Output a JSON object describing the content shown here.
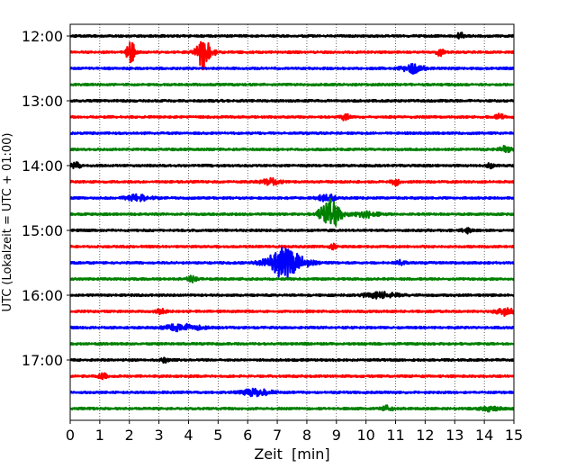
{
  "chart_data": {
    "type": "line",
    "title": "",
    "xlabel": "Zeit  [min]",
    "ylabel": "UTC (Lokalzeit = UTC + 01:00)",
    "xlim": [
      0,
      15
    ],
    "x_ticks": [
      "0",
      "1",
      "2",
      "3",
      "4",
      "5",
      "6",
      "7",
      "8",
      "9",
      "10",
      "11",
      "12",
      "13",
      "14",
      "15"
    ],
    "y_ticks": [
      {
        "label": "12:00",
        "hour": 12.0
      },
      {
        "label": "13:00",
        "hour": 13.0
      },
      {
        "label": "14:00",
        "hour": 14.0
      },
      {
        "label": "15:00",
        "hour": 15.0
      },
      {
        "label": "16:00",
        "hour": 16.0
      },
      {
        "label": "17:00",
        "hour": 17.0
      }
    ],
    "trace_interval_minutes": 15,
    "first_trace_hour": 12.0,
    "trace_colors": [
      "#000000",
      "#ff0000",
      "#0000ff",
      "#008000"
    ],
    "traces": [
      {
        "start": "12:00",
        "color": "#000000",
        "amplitude": 0.12,
        "events": [
          {
            "x": 13.2,
            "amp": 0.35,
            "width": 0.15
          }
        ]
      },
      {
        "start": "12:15",
        "color": "#ff0000",
        "amplitude": 0.12,
        "events": [
          {
            "x": 2.05,
            "amp": 1.3,
            "width": 0.15
          },
          {
            "x": 4.55,
            "amp": 2.2,
            "width": 0.25
          },
          {
            "x": 12.5,
            "amp": 0.4,
            "width": 0.12
          }
        ]
      },
      {
        "start": "12:30",
        "color": "#0000ff",
        "amplitude": 0.12,
        "events": [
          {
            "x": 11.6,
            "amp": 0.55,
            "width": 0.35
          }
        ]
      },
      {
        "start": "12:45",
        "color": "#008000",
        "amplitude": 0.12,
        "events": []
      },
      {
        "start": "13:00",
        "color": "#000000",
        "amplitude": 0.12,
        "events": []
      },
      {
        "start": "13:15",
        "color": "#ff0000",
        "amplitude": 0.12,
        "events": [
          {
            "x": 9.3,
            "amp": 0.4,
            "width": 0.12
          },
          {
            "x": 14.5,
            "amp": 0.35,
            "width": 0.15
          }
        ]
      },
      {
        "start": "13:30",
        "color": "#0000ff",
        "amplitude": 0.12,
        "events": []
      },
      {
        "start": "13:45",
        "color": "#008000",
        "amplitude": 0.12,
        "events": [
          {
            "x": 14.7,
            "amp": 0.35,
            "width": 0.2
          }
        ]
      },
      {
        "start": "14:00",
        "color": "#000000",
        "amplitude": 0.12,
        "events": [
          {
            "x": 0.2,
            "amp": 0.35,
            "width": 0.15
          },
          {
            "x": 14.2,
            "amp": 0.3,
            "width": 0.1
          }
        ]
      },
      {
        "start": "14:15",
        "color": "#ff0000",
        "amplitude": 0.12,
        "events": [
          {
            "x": 6.8,
            "amp": 0.4,
            "width": 0.3
          },
          {
            "x": 11.0,
            "amp": 0.35,
            "width": 0.15
          }
        ]
      },
      {
        "start": "14:30",
        "color": "#0000ff",
        "amplitude": 0.12,
        "events": [
          {
            "x": 2.3,
            "amp": 0.35,
            "width": 0.4
          },
          {
            "x": 8.7,
            "amp": 0.5,
            "width": 0.3
          }
        ]
      },
      {
        "start": "14:45",
        "color": "#008000",
        "amplitude": 0.12,
        "events": [
          {
            "x": 8.8,
            "amp": 1.8,
            "width": 0.35
          },
          {
            "x": 10.0,
            "amp": 0.35,
            "width": 0.4
          }
        ]
      },
      {
        "start": "15:00",
        "color": "#000000",
        "amplitude": 0.12,
        "events": [
          {
            "x": 13.4,
            "amp": 0.3,
            "width": 0.15
          }
        ]
      },
      {
        "start": "15:15",
        "color": "#ff0000",
        "amplitude": 0.12,
        "events": [
          {
            "x": 8.9,
            "amp": 0.3,
            "width": 0.12
          }
        ]
      },
      {
        "start": "15:30",
        "color": "#0000ff",
        "amplitude": 0.12,
        "events": [
          {
            "x": 7.3,
            "amp": 1.9,
            "width": 0.6
          },
          {
            "x": 11.2,
            "amp": 0.3,
            "width": 0.15
          }
        ]
      },
      {
        "start": "15:45",
        "color": "#008000",
        "amplitude": 0.12,
        "events": [
          {
            "x": 4.1,
            "amp": 0.35,
            "width": 0.15
          }
        ]
      },
      {
        "start": "16:00",
        "color": "#000000",
        "amplitude": 0.12,
        "events": [
          {
            "x": 10.5,
            "amp": 0.35,
            "width": 0.6
          }
        ]
      },
      {
        "start": "16:15",
        "color": "#ff0000",
        "amplitude": 0.12,
        "events": [
          {
            "x": 3.1,
            "amp": 0.3,
            "width": 0.2
          },
          {
            "x": 14.7,
            "amp": 0.45,
            "width": 0.3
          }
        ]
      },
      {
        "start": "16:30",
        "color": "#0000ff",
        "amplitude": 0.12,
        "events": [
          {
            "x": 3.8,
            "amp": 0.4,
            "width": 0.6
          }
        ]
      },
      {
        "start": "16:45",
        "color": "#008000",
        "amplitude": 0.12,
        "events": []
      },
      {
        "start": "17:00",
        "color": "#000000",
        "amplitude": 0.12,
        "events": [
          {
            "x": 3.2,
            "amp": 0.35,
            "width": 0.1
          }
        ]
      },
      {
        "start": "17:15",
        "color": "#ff0000",
        "amplitude": 0.12,
        "events": [
          {
            "x": 1.1,
            "amp": 0.3,
            "width": 0.15
          }
        ]
      },
      {
        "start": "17:30",
        "color": "#0000ff",
        "amplitude": 0.12,
        "events": [
          {
            "x": 6.3,
            "amp": 0.4,
            "width": 0.5
          }
        ]
      },
      {
        "start": "17:45",
        "color": "#008000",
        "amplitude": 0.12,
        "events": [
          {
            "x": 10.7,
            "amp": 0.3,
            "width": 0.2
          },
          {
            "x": 14.2,
            "amp": 0.3,
            "width": 0.3
          }
        ]
      }
    ]
  }
}
